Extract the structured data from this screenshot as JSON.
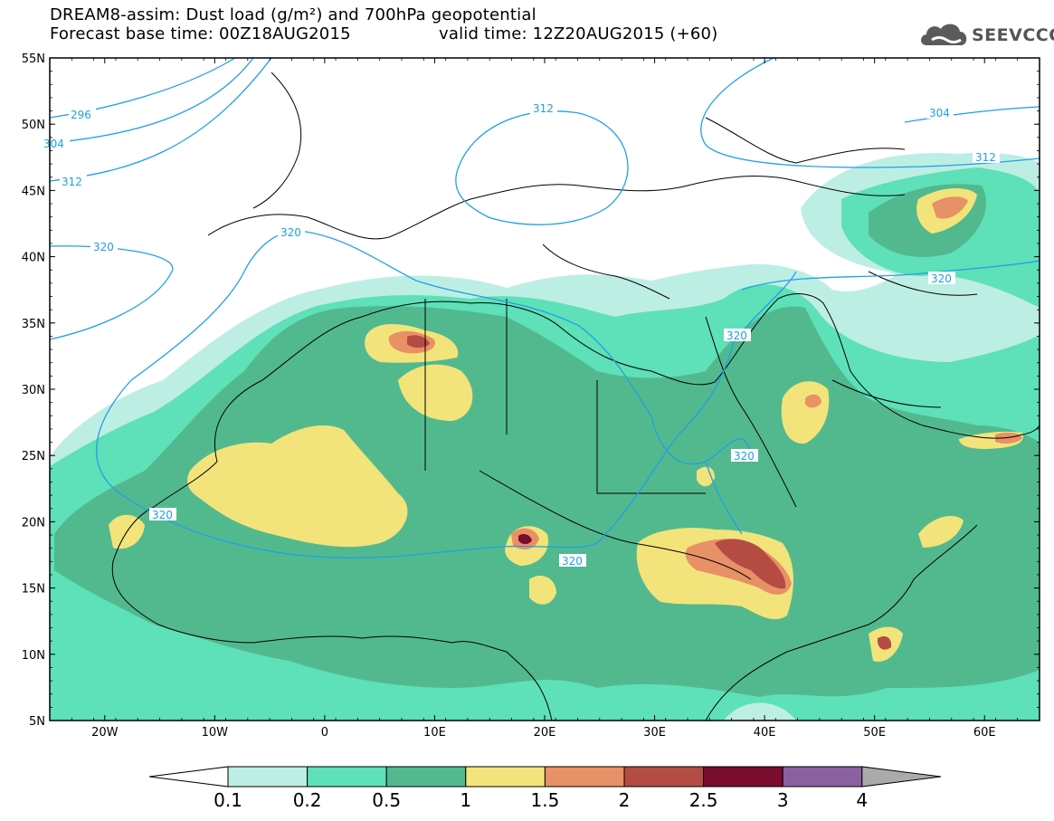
{
  "title_line1": "DREAM8-assim: Dust load (g/m²) and 700hPa geopotential",
  "title_line2_base": "Forecast base time: 00Z18AUG2015",
  "title_line2_valid": "valid time: 12Z20AUG2015 (+60)",
  "logo_text": "SEEVCCC",
  "logo_icon": "cloud-icon",
  "map": {
    "lon_range": [
      -25,
      65
    ],
    "lat_range": [
      5,
      55
    ],
    "lat_ticks": [
      "55N",
      "50N",
      "45N",
      "40N",
      "35N",
      "30N",
      "25N",
      "20N",
      "15N",
      "10N",
      "5N"
    ],
    "lon_ticks": [
      "20W",
      "10W",
      "0",
      "10E",
      "20E",
      "30E",
      "40E",
      "50E",
      "60E"
    ],
    "contour_color": "#1fa0e6",
    "contour_labels": [
      "296",
      "304",
      "312",
      "312",
      "320",
      "320",
      "320",
      "312",
      "304",
      "320",
      "320",
      "320",
      "320"
    ]
  },
  "colorbar": {
    "labels": [
      "0.1",
      "0.2",
      "0.5",
      "1",
      "1.5",
      "2",
      "2.5",
      "3",
      "4"
    ],
    "colors": [
      "#bdeee4",
      "#5ee0b8",
      "#52b98f",
      "#f2e47a",
      "#e89066",
      "#b54c44",
      "#7a0c2e",
      "#8c5fa0"
    ],
    "under_color": "#ffffff",
    "over_color": "#aaaaaa"
  }
}
